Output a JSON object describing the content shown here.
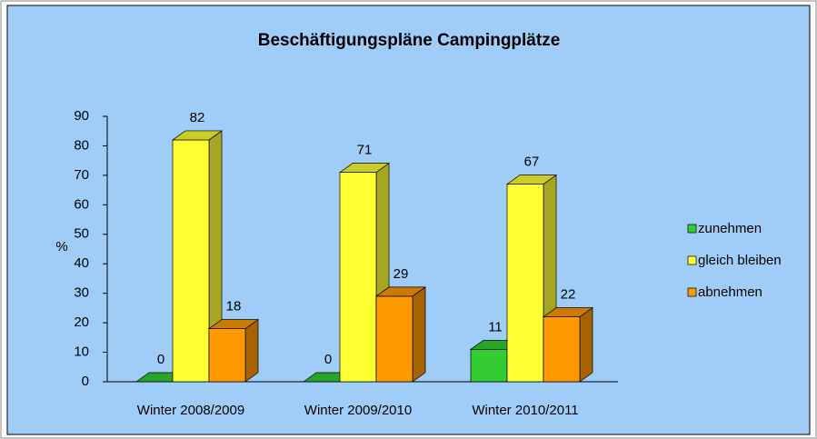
{
  "chart_data": {
    "type": "bar3d",
    "title": "Beschäftigungspläne Campingplätze",
    "y_label": "%",
    "categories": [
      "Winter 2008/2009",
      "Winter 2009/2010",
      "Winter 2010/2011"
    ],
    "series": [
      {
        "name": "zunehmen",
        "color": "#33cc33",
        "values": [
          0,
          0,
          11
        ]
      },
      {
        "name": "gleich bleiben",
        "color": "#ffff33",
        "values": [
          82,
          71,
          67
        ]
      },
      {
        "name": "abnehmen",
        "color": "#ff9900",
        "values": [
          18,
          29,
          22
        ]
      }
    ],
    "ylim": [
      0,
      90
    ],
    "yticks": [
      0,
      10,
      20,
      30,
      40,
      50,
      60,
      70,
      80,
      90
    ],
    "legend": "right"
  }
}
